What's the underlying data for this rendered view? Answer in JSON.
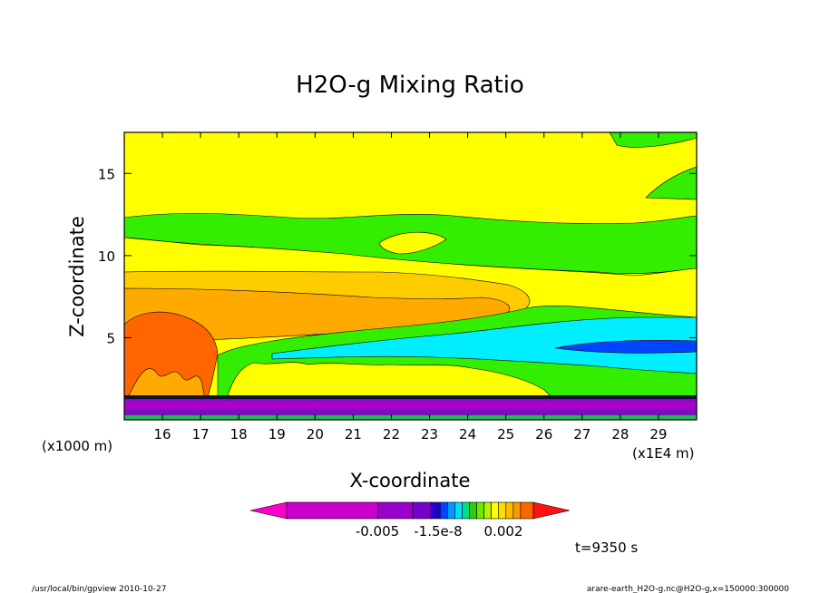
{
  "chart_data": {
    "type": "heatmap",
    "title": "H2O-g Mixing Ratio",
    "xlabel": "X-coordinate",
    "ylabel": "Z-coordinate",
    "x_units": "(x1E4 m)",
    "y_units": "(x1000 m)",
    "x_ticks": [
      "16",
      "17",
      "18",
      "19",
      "20",
      "21",
      "22",
      "23",
      "24",
      "25",
      "26",
      "27",
      "28",
      "29"
    ],
    "y_ticks": [
      "5",
      "10",
      "15"
    ],
    "xlim": [
      15,
      30
    ],
    "ylim": [
      0,
      17.5
    ],
    "grid": false,
    "colorbar": {
      "labels": [
        "-0.005",
        "-1.5e-8",
        "0.002"
      ],
      "colors": [
        "#cc00cc",
        "#9900cc",
        "#7700cc",
        "#2200cc",
        "#0044ff",
        "#0099ff",
        "#00ddff",
        "#00dd88",
        "#33cc00",
        "#66ee00",
        "#bbee00",
        "#ffff00",
        "#ffdd00",
        "#ffbb00",
        "#ff9900",
        "#ff6600"
      ],
      "under_color": "#ff00cc",
      "over_color": "#ff1111"
    },
    "bands": [
      {
        "name": "top-yellow",
        "z_bottom": 12.5,
        "z_top": 17.5,
        "color": "#ffff00"
      },
      {
        "name": "upper-green",
        "z_bottom": 11.0,
        "z_top": 12.5,
        "color": "#33ee00"
      },
      {
        "name": "mid-yellow",
        "z_bottom": 9.0,
        "z_top": 11.0,
        "color": "#ffff00"
      },
      {
        "name": "light-orange",
        "z_bottom": 7.5,
        "z_top": 9.0,
        "color": "#ffcc00"
      },
      {
        "name": "orange",
        "z_bottom": 5.5,
        "z_top": 7.5,
        "color": "#ffaa00"
      },
      {
        "name": "lower-green",
        "z_bottom": 2.5,
        "z_top": 5.5,
        "color": "#33ee00"
      },
      {
        "name": "boundary-purple",
        "z_bottom": 0.0,
        "z_top": 1.5,
        "color": "#7711bb"
      }
    ]
  },
  "annotations": {
    "time": "t=9350 s"
  },
  "footer": {
    "left": "/usr/local/bin/gpview   2010-10-27",
    "right": "arare-earth_H2O-g.nc@H2O-g,x=150000:300000"
  }
}
